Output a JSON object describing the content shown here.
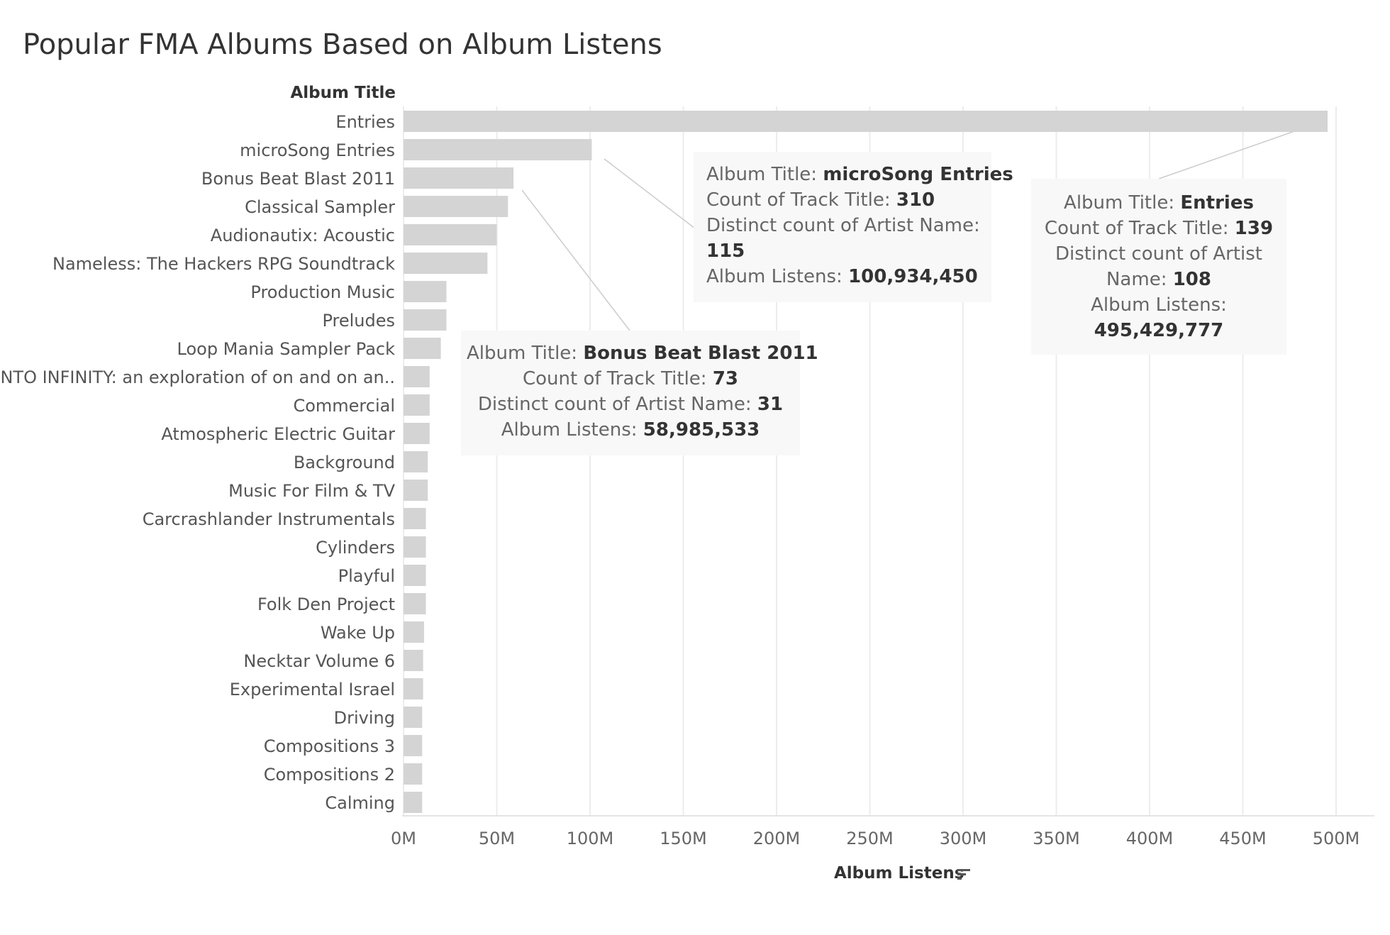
{
  "chart_data": {
    "type": "bar",
    "orientation": "horizontal",
    "title": "Popular FMA Albums Based on Album Listens",
    "category_header": "Album Title",
    "xlabel": "Album Listens",
    "xlim": [
      0,
      500000000
    ],
    "x_ticks": [
      "0M",
      "50M",
      "100M",
      "150M",
      "200M",
      "250M",
      "300M",
      "350M",
      "400M",
      "450M",
      "500M"
    ],
    "x_tick_values": [
      0,
      50000000,
      100000000,
      150000000,
      200000000,
      250000000,
      300000000,
      350000000,
      400000000,
      450000000,
      500000000
    ],
    "bar_color": "#d4d4d4",
    "grid_color": "#ececec",
    "grid": "vertical",
    "categories": [
      "Entries",
      "microSong Entries",
      "Bonus Beat Blast 2011",
      "Classical Sampler",
      "Audionautix: Acoustic",
      "Nameless: The Hackers RPG Soundtrack",
      "Production Music",
      "Preludes",
      "Loop Mania Sampler Pack",
      "INTO INFINITY: an exploration of on and on an..",
      "Commercial",
      "Atmospheric Electric Guitar",
      "Background",
      "Music For Film & TV",
      "Carcrashlander Instrumentals",
      "Cylinders",
      "Playful",
      "Folk Den Project",
      "Wake Up",
      "Necktar Volume 6",
      "Experimental Israel",
      "Driving",
      "Compositions 3",
      "Compositions 2",
      "Calming"
    ],
    "values": [
      495429777,
      100934450,
      58985533,
      56000000,
      50000000,
      45000000,
      23000000,
      23000000,
      20000000,
      14000000,
      14000000,
      14000000,
      13000000,
      13000000,
      12000000,
      12000000,
      12000000,
      12000000,
      11000000,
      10500000,
      10500000,
      10000000,
      10000000,
      10000000,
      10000000
    ],
    "annotations": [
      {
        "album_title_label": "Album Title:",
        "album_title": "microSong Entries",
        "track_label": "Count of Track Title:",
        "track_count": "310",
        "artist_label": "Distinct count of Artist Name:",
        "artist_count": "115",
        "listens_label": "Album Listens:",
        "listens": "100,934,450"
      },
      {
        "album_title_label": "Album Title:",
        "album_title": "Entries",
        "track_label": "Count of Track Title:",
        "track_count": "139",
        "artist_label_1": "Distinct count of Artist",
        "artist_label_2": "Name:",
        "artist_count": "108",
        "listens_label": "Album Listens:",
        "listens": "495,429,777"
      },
      {
        "album_title_label": "Album Title:",
        "album_title": "Bonus Beat Blast 2011",
        "track_label": "Count of Track Title:",
        "track_count": "73",
        "artist_label": "Distinct count of Artist Name:",
        "artist_count": "31",
        "listens_label": "Album Listens:",
        "listens": "58,985,533"
      }
    ]
  }
}
